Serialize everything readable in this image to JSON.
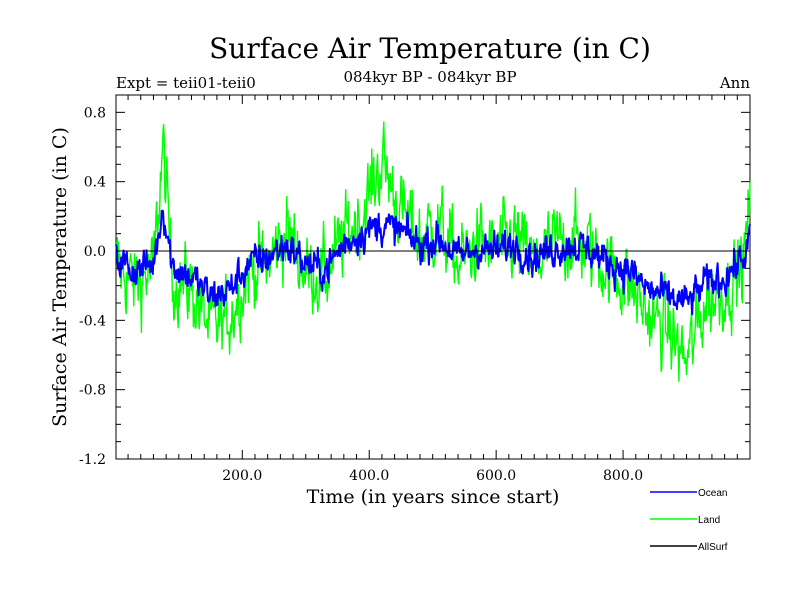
{
  "chart_data": {
    "type": "line",
    "title": "Surface Air Temperature (in C)",
    "subtitle": "084kyr BP - 084kyr BP",
    "left_label": "Expt = teii01-teii0",
    "right_label": "Ann",
    "xlabel": "Time (in years since start)",
    "ylabel": "Surface Air Temperature (in C)",
    "xlim": [
      1,
      1000
    ],
    "ylim": [
      -1.2,
      0.9
    ],
    "x_ticks": [
      200,
      400,
      600,
      800
    ],
    "x_tick_labels": [
      "200.0",
      "400.0",
      "600.0",
      "800.0"
    ],
    "y_ticks": [
      0.8,
      0.4,
      0.0,
      -0.4,
      -0.8,
      -1.2
    ],
    "y_tick_labels": [
      "0.8",
      "0.4",
      "0.0",
      "-0.4",
      "-0.8",
      "-1.2"
    ],
    "zero_line": true,
    "grid": false,
    "legend_position": "bottom-right, outside plot",
    "series": [
      {
        "name": "Ocean",
        "color": "#0000ff",
        "x": [
          1,
          30,
          60,
          75,
          90,
          120,
          150,
          180,
          210,
          240,
          270,
          300,
          330,
          360,
          390,
          420,
          450,
          480,
          510,
          540,
          570,
          600,
          630,
          660,
          690,
          720,
          750,
          780,
          810,
          840,
          870,
          900,
          930,
          960,
          990,
          1000
        ],
        "y": [
          -0.05,
          -0.15,
          -0.1,
          0.35,
          -0.12,
          -0.2,
          -0.35,
          -0.3,
          -0.1,
          -0.05,
          0.05,
          -0.1,
          -0.15,
          0.05,
          0.15,
          0.2,
          0.15,
          0.05,
          0.1,
          -0.05,
          0.02,
          0.0,
          0.05,
          -0.05,
          0.02,
          0.05,
          0.0,
          -0.1,
          -0.15,
          -0.3,
          -0.35,
          -0.4,
          -0.25,
          -0.2,
          -0.05,
          0.1
        ]
      },
      {
        "name": "Land",
        "color": "#00ff00",
        "x": [
          1,
          30,
          60,
          75,
          90,
          120,
          150,
          180,
          210,
          240,
          270,
          300,
          330,
          360,
          390,
          420,
          450,
          480,
          510,
          540,
          570,
          600,
          630,
          660,
          690,
          720,
          750,
          780,
          810,
          840,
          870,
          900,
          930,
          960,
          990,
          1000
        ],
        "y": [
          -0.1,
          -0.25,
          -0.15,
          0.8,
          -0.2,
          -0.3,
          -0.6,
          -0.5,
          -0.15,
          -0.1,
          0.15,
          -0.15,
          -0.2,
          0.1,
          0.3,
          0.7,
          0.3,
          0.1,
          0.2,
          -0.1,
          0.05,
          0.0,
          0.1,
          -0.1,
          0.05,
          0.1,
          0.0,
          -0.15,
          -0.25,
          -0.5,
          -0.6,
          -0.85,
          -0.4,
          -0.3,
          -0.1,
          0.4
        ]
      },
      {
        "name": "AllSurf",
        "color": "#000000",
        "x": [],
        "y": []
      }
    ]
  }
}
